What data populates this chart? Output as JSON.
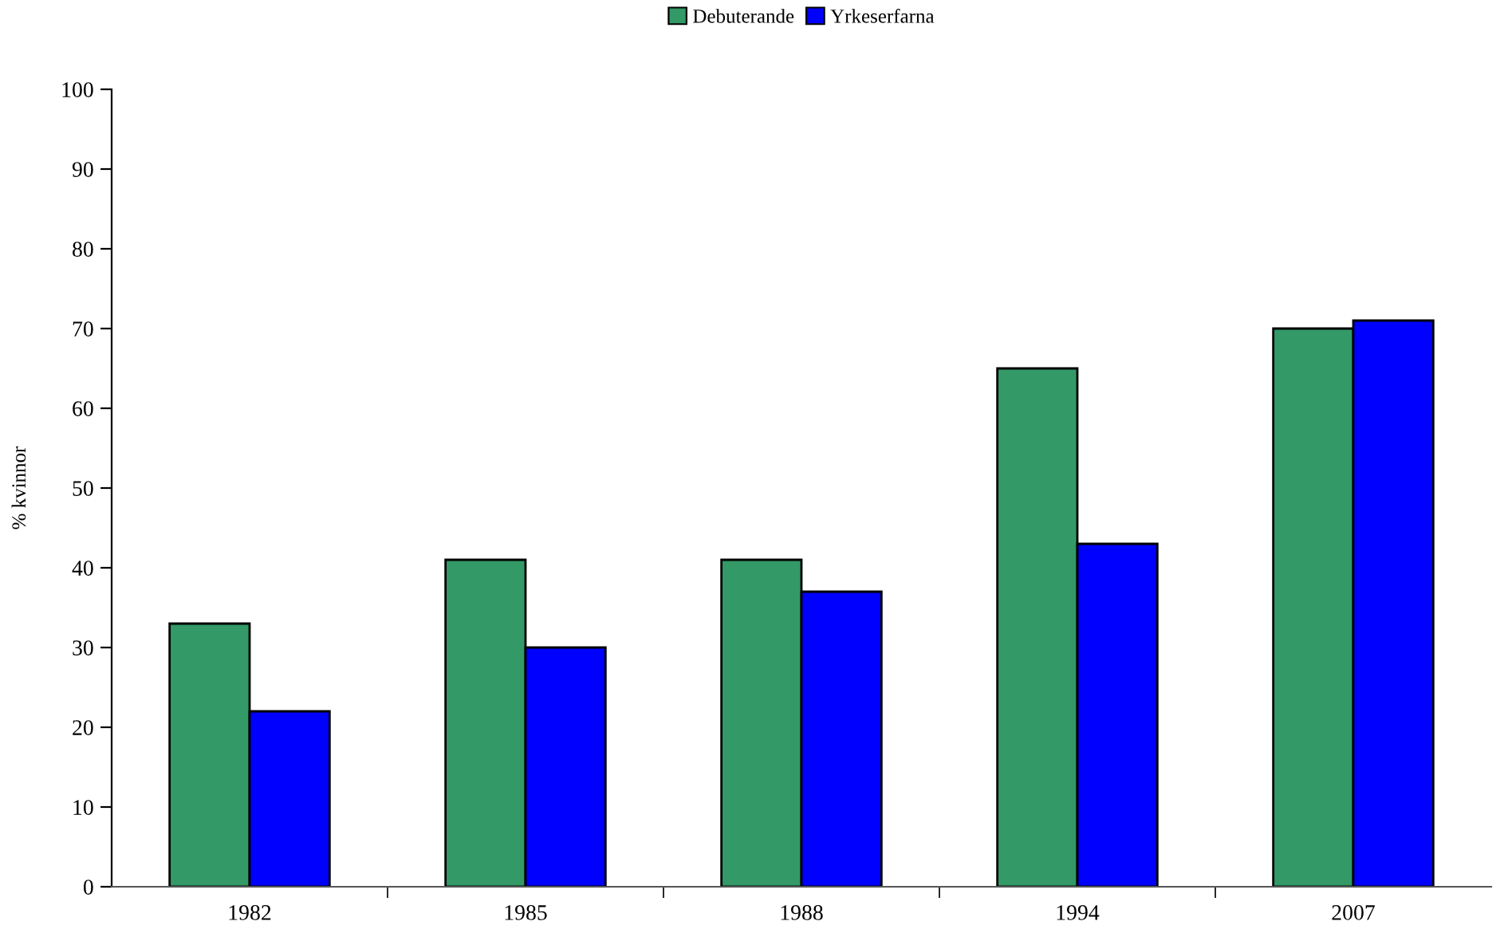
{
  "chart_data": {
    "type": "bar",
    "categories": [
      "1982",
      "1985",
      "1988",
      "1994",
      "2007"
    ],
    "series": [
      {
        "name": "Debuterande",
        "color": "#339966",
        "values": [
          33,
          41,
          41,
          65,
          70
        ]
      },
      {
        "name": "Yrkeserfarna",
        "color": "#0000ff",
        "values": [
          22,
          30,
          37,
          43,
          71
        ]
      }
    ],
    "ylabel": "% kvinnor",
    "ylim": [
      0,
      100
    ],
    "yticks": [
      0,
      10,
      20,
      30,
      40,
      50,
      60,
      70,
      80,
      90,
      100
    ],
    "legend": "top",
    "grid": false
  }
}
